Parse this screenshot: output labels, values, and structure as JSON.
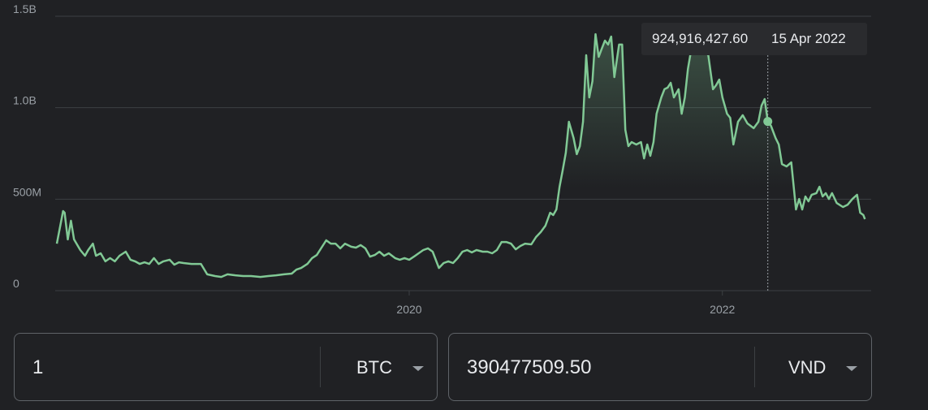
{
  "chart_data": {
    "type": "line",
    "color": "#81c995",
    "grid": true,
    "xlim": [
      2017.75,
      2022.95
    ],
    "xticks": [
      2020,
      2022
    ],
    "ylim": [
      0,
      1500000000
    ],
    "yticks": [
      0,
      {
        "value": 500000000,
        "label": "500M"
      },
      {
        "value": 1000000000,
        "label": "1.0B"
      },
      {
        "value": 1500000000,
        "label": "1.5B"
      }
    ],
    "x": [
      2017.75,
      2017.79,
      2017.8,
      2017.82,
      2017.84,
      2017.86,
      2017.9,
      2017.93,
      2017.95,
      2017.98,
      2018.0,
      2018.03,
      2018.06,
      2018.09,
      2018.12,
      2018.15,
      2018.19,
      2018.22,
      2018.25,
      2018.28,
      2018.31,
      2018.34,
      2018.37,
      2018.4,
      2018.43,
      2018.47,
      2018.5,
      2018.53,
      2018.56,
      2018.61,
      2018.67,
      2018.71,
      2018.76,
      2018.8,
      2018.84,
      2018.89,
      2018.94,
      2018.99,
      2019.05,
      2019.1,
      2019.15,
      2019.2,
      2019.25,
      2019.28,
      2019.31,
      2019.35,
      2019.38,
      2019.41,
      2019.44,
      2019.47,
      2019.5,
      2019.53,
      2019.56,
      2019.59,
      2019.63,
      2019.66,
      2019.69,
      2019.72,
      2019.75,
      2019.78,
      2019.81,
      2019.84,
      2019.87,
      2019.91,
      2019.94,
      2019.97,
      2020.0,
      2020.03,
      2020.06,
      2020.09,
      2020.12,
      2020.15,
      2020.19,
      2020.22,
      2020.25,
      2020.28,
      2020.31,
      2020.34,
      2020.37,
      2020.4,
      2020.43,
      2020.47,
      2020.5,
      2020.53,
      2020.56,
      2020.59,
      2020.62,
      2020.65,
      2020.68,
      2020.71,
      2020.74,
      2020.78,
      2020.81,
      2020.84,
      2020.87,
      2020.9,
      2020.92,
      2020.94,
      2020.96,
      2020.98,
      2021.0,
      2021.02,
      2021.05,
      2021.07,
      2021.09,
      2021.11,
      2021.13,
      2021.15,
      2021.17,
      2021.19,
      2021.21,
      2021.23,
      2021.25,
      2021.27,
      2021.29,
      2021.31,
      2021.34,
      2021.36,
      2021.38,
      2021.4,
      2021.42,
      2021.45,
      2021.48,
      2021.5,
      2021.52,
      2021.54,
      2021.56,
      2021.58,
      2021.61,
      2021.63,
      2021.65,
      2021.67,
      2021.69,
      2021.72,
      2021.74,
      2021.76,
      2021.78,
      2021.8,
      2021.83,
      2021.87,
      2021.91,
      2021.94,
      2021.96,
      2021.98,
      2022.0,
      2022.03,
      2022.05,
      2022.07,
      2022.1,
      2022.13,
      2022.16,
      2022.2,
      2022.23,
      2022.25,
      2022.27,
      2022.29,
      2022.31,
      2022.34,
      2022.36,
      2022.38,
      2022.41,
      2022.44,
      2022.47,
      2022.49,
      2022.51,
      2022.53,
      2022.55,
      2022.57,
      2022.6,
      2022.62,
      2022.64,
      2022.66,
      2022.68,
      2022.7,
      2022.73,
      2022.77,
      2022.8,
      2022.83,
      2022.86,
      2022.88,
      2022.9,
      2022.91
    ],
    "values": [
      257000000,
      435000000,
      426000000,
      280000000,
      382000000,
      280000000,
      222000000,
      191000000,
      222000000,
      257000000,
      191000000,
      204000000,
      160000000,
      178000000,
      160000000,
      191000000,
      213000000,
      169000000,
      160000000,
      146000000,
      155000000,
      146000000,
      178000000,
      146000000,
      160000000,
      169000000,
      142000000,
      155000000,
      151000000,
      146000000,
      146000000,
      89000000,
      80000000,
      75000000,
      89000000,
      84000000,
      80000000,
      80000000,
      75000000,
      80000000,
      84000000,
      89000000,
      93000000,
      115000000,
      124000000,
      146000000,
      178000000,
      195000000,
      235000000,
      275000000,
      257000000,
      257000000,
      231000000,
      257000000,
      240000000,
      235000000,
      249000000,
      231000000,
      186000000,
      195000000,
      213000000,
      191000000,
      204000000,
      178000000,
      169000000,
      178000000,
      169000000,
      186000000,
      204000000,
      222000000,
      231000000,
      213000000,
      124000000,
      151000000,
      160000000,
      151000000,
      178000000,
      213000000,
      222000000,
      209000000,
      222000000,
      213000000,
      213000000,
      204000000,
      222000000,
      266000000,
      266000000,
      257000000,
      226000000,
      244000000,
      257000000,
      253000000,
      293000000,
      320000000,
      355000000,
      426000000,
      413000000,
      444000000,
      568000000,
      657000000,
      754000000,
      923000000,
      834000000,
      746000000,
      790000000,
      923000000,
      1287000000,
      1056000000,
      1145000000,
      1402000000,
      1278000000,
      1323000000,
      1367000000,
      1345000000,
      1389000000,
      1167000000,
      1345000000,
      1345000000,
      879000000,
      790000000,
      812000000,
      799000000,
      812000000,
      723000000,
      799000000,
      737000000,
      812000000,
      967000000,
      1056000000,
      1101000000,
      1110000000,
      1136000000,
      1056000000,
      1101000000,
      967000000,
      1056000000,
      1212000000,
      1314000000,
      1345000000,
      1323000000,
      1287000000,
      1101000000,
      1123000000,
      1154000000,
      1056000000,
      967000000,
      945000000,
      799000000,
      923000000,
      959000000,
      914000000,
      888000000,
      923000000,
      1012000000,
      1047000000,
      925000000,
      901000000,
      834000000,
      799000000,
      692000000,
      679000000,
      701000000,
      444000000,
      501000000,
      444000000,
      515000000,
      488000000,
      524000000,
      533000000,
      568000000,
      515000000,
      533000000,
      501000000,
      533000000,
      479000000,
      457000000,
      470000000,
      501000000,
      524000000,
      426000000,
      413000000,
      391000000
    ],
    "tooltip": {
      "x": 2022.29,
      "value": 924916427.6,
      "label": "924,916,427.60",
      "date": "15 Apr 2022"
    }
  },
  "converter": {
    "from": {
      "amount": "1",
      "currency": "BTC"
    },
    "to": {
      "amount": "390477509.50",
      "currency": "VND"
    }
  }
}
